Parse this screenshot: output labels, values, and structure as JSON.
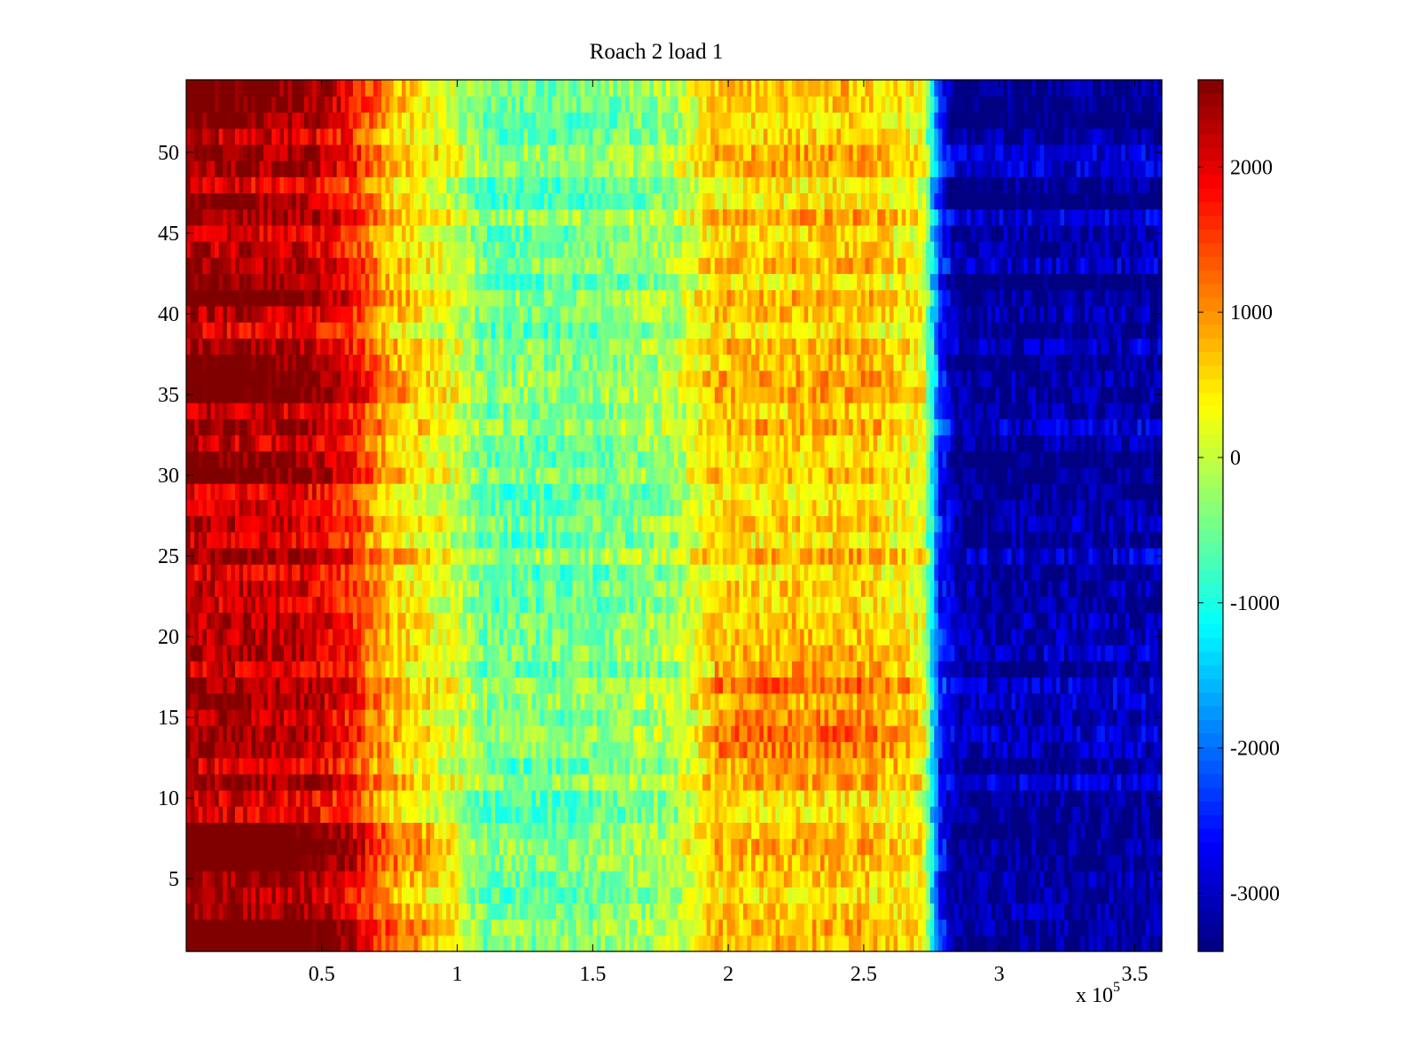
{
  "chart_data": {
    "type": "heatmap",
    "title": "Roach 2 load 1",
    "xlabel": "",
    "ylabel": "",
    "x_multiplier_label": {
      "base": "x 10",
      "exponent": "5"
    },
    "xlim": [
      0,
      3.6
    ],
    "ylim": [
      0.5,
      54.5
    ],
    "x_ticks": [
      0.5,
      1,
      1.5,
      2,
      2.5,
      3,
      3.5
    ],
    "x_tick_labels": [
      "0.5",
      "1",
      "1.5",
      "2",
      "2.5",
      "3",
      "3.5"
    ],
    "y_ticks": [
      5,
      10,
      15,
      20,
      25,
      30,
      35,
      40,
      45,
      50
    ],
    "y_tick_labels": [
      "5",
      "10",
      "15",
      "20",
      "25",
      "30",
      "35",
      "40",
      "45",
      "50"
    ],
    "rows": 54,
    "colorbar": {
      "colormap": "jet",
      "clim": [
        -3400,
        2600
      ],
      "ticks": [
        -3000,
        -2000,
        -1000,
        0,
        1000,
        2000
      ],
      "tick_labels": [
        "-3000",
        "-2000",
        "-1000",
        "0",
        "1000",
        "2000"
      ]
    },
    "x_value_profile": [
      {
        "x": 0.0,
        "value": 2300
      },
      {
        "x": 0.45,
        "value": 2150
      },
      {
        "x": 0.6,
        "value": 1700
      },
      {
        "x": 0.75,
        "value": 700
      },
      {
        "x": 1.0,
        "value": 100
      },
      {
        "x": 1.1,
        "value": -500
      },
      {
        "x": 1.5,
        "value": -450
      },
      {
        "x": 1.8,
        "value": -150
      },
      {
        "x": 1.95,
        "value": 650
      },
      {
        "x": 2.5,
        "value": 700
      },
      {
        "x": 2.72,
        "value": 300
      },
      {
        "x": 2.78,
        "value": -2400
      },
      {
        "x": 2.85,
        "value": -3150
      },
      {
        "x": 3.6,
        "value": -3050
      }
    ],
    "notable_rows": {
      "strong_high_rows": [
        1,
        2,
        6,
        7,
        8,
        30,
        31,
        35,
        36,
        37,
        41,
        42,
        47,
        52,
        53,
        54
      ],
      "hot_middle_rows": [
        12,
        13,
        14,
        15,
        17,
        18
      ]
    },
    "colors": {
      "background": "#ffffff",
      "axis": "#000000"
    }
  }
}
